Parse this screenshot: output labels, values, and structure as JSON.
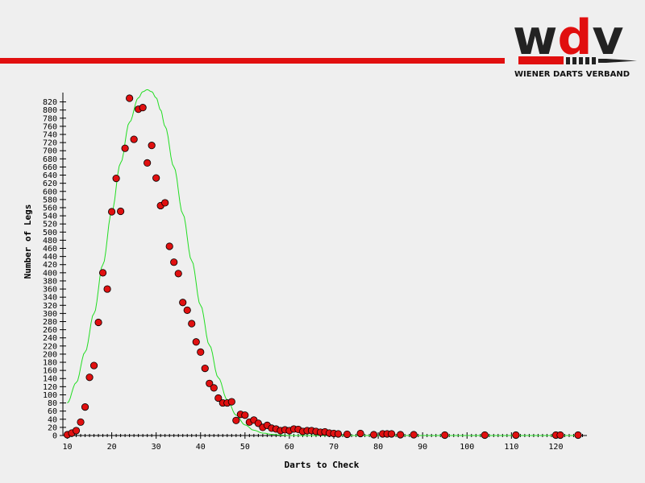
{
  "logo": {
    "letters_dark": "w",
    "letter_accent": "d",
    "letters_dark2": "v",
    "subtitle": "WIENER DARTS VERBAND",
    "color_dark": "#222222",
    "color_accent": "#e10f0f"
  },
  "colors": {
    "background": "#efefef",
    "accent_bar": "#e10f0f",
    "marker_fill": "#e01010",
    "marker_edge": "#000000",
    "curve": "#22dd22",
    "axis": "#000000"
  },
  "chart_data": {
    "type": "scatter",
    "title": "",
    "xlabel": "Darts to Check",
    "ylabel": "Number of Legs",
    "xlim": [
      9,
      127
    ],
    "ylim": [
      0,
      835
    ],
    "x_ticks": [
      10,
      20,
      30,
      40,
      50,
      60,
      70,
      80,
      90,
      100,
      110,
      120
    ],
    "y_ticks": [
      0,
      20,
      40,
      60,
      80,
      100,
      120,
      140,
      160,
      180,
      200,
      220,
      240,
      260,
      280,
      300,
      320,
      340,
      360,
      380,
      400,
      420,
      440,
      460,
      480,
      500,
      520,
      540,
      560,
      580,
      600,
      620,
      640,
      660,
      680,
      700,
      720,
      740,
      760,
      780,
      800,
      820
    ],
    "grid": false,
    "series": [
      {
        "kind": "points",
        "x": [
          10,
          11,
          12,
          13,
          14,
          15,
          16,
          17,
          18,
          19,
          20,
          21,
          22,
          23,
          24,
          25,
          26,
          27,
          28,
          29,
          30,
          31,
          32,
          33,
          34,
          35,
          36,
          37,
          38,
          39,
          40,
          41,
          42,
          43,
          44,
          45,
          46,
          47,
          48,
          49,
          50,
          51,
          52,
          53,
          54,
          55,
          56,
          57,
          58,
          59,
          60,
          61,
          62,
          63,
          64,
          65,
          66,
          67,
          68,
          69,
          70,
          71,
          73,
          76,
          79,
          81,
          82,
          83,
          85,
          88,
          95,
          104,
          111,
          120,
          121,
          125
        ],
        "y": [
          2,
          6,
          12,
          33,
          70,
          143,
          172,
          278,
          400,
          360,
          550,
          632,
          551,
          706,
          829,
          728,
          802,
          806,
          670,
          713,
          633,
          565,
          572,
          465,
          426,
          398,
          327,
          308,
          275,
          230,
          205,
          165,
          128,
          117,
          92,
          80,
          80,
          83,
          37,
          52,
          50,
          33,
          38,
          30,
          20,
          25,
          18,
          16,
          12,
          14,
          12,
          16,
          15,
          10,
          12,
          12,
          10,
          8,
          9,
          6,
          5,
          4,
          3,
          5,
          2,
          4,
          4,
          4,
          2,
          2,
          1,
          1,
          1,
          1,
          1,
          1
        ]
      },
      {
        "kind": "curve",
        "note": "",
        "x": [
          10,
          12,
          14,
          16,
          18,
          20,
          22,
          24,
          26,
          27,
          28,
          29,
          30,
          31,
          32,
          34,
          36,
          38,
          40,
          42,
          44,
          46,
          48,
          50,
          52,
          54,
          56,
          58,
          60,
          65,
          70,
          80,
          90,
          100,
          110,
          120,
          125
        ],
        "y": [
          80,
          130,
          205,
          300,
          420,
          550,
          670,
          770,
          830,
          845,
          850,
          845,
          830,
          800,
          760,
          660,
          545,
          430,
          320,
          222,
          142,
          88,
          50,
          26,
          13,
          6,
          3,
          1,
          0,
          0,
          0,
          0,
          0,
          0,
          0,
          0,
          0
        ]
      }
    ]
  }
}
